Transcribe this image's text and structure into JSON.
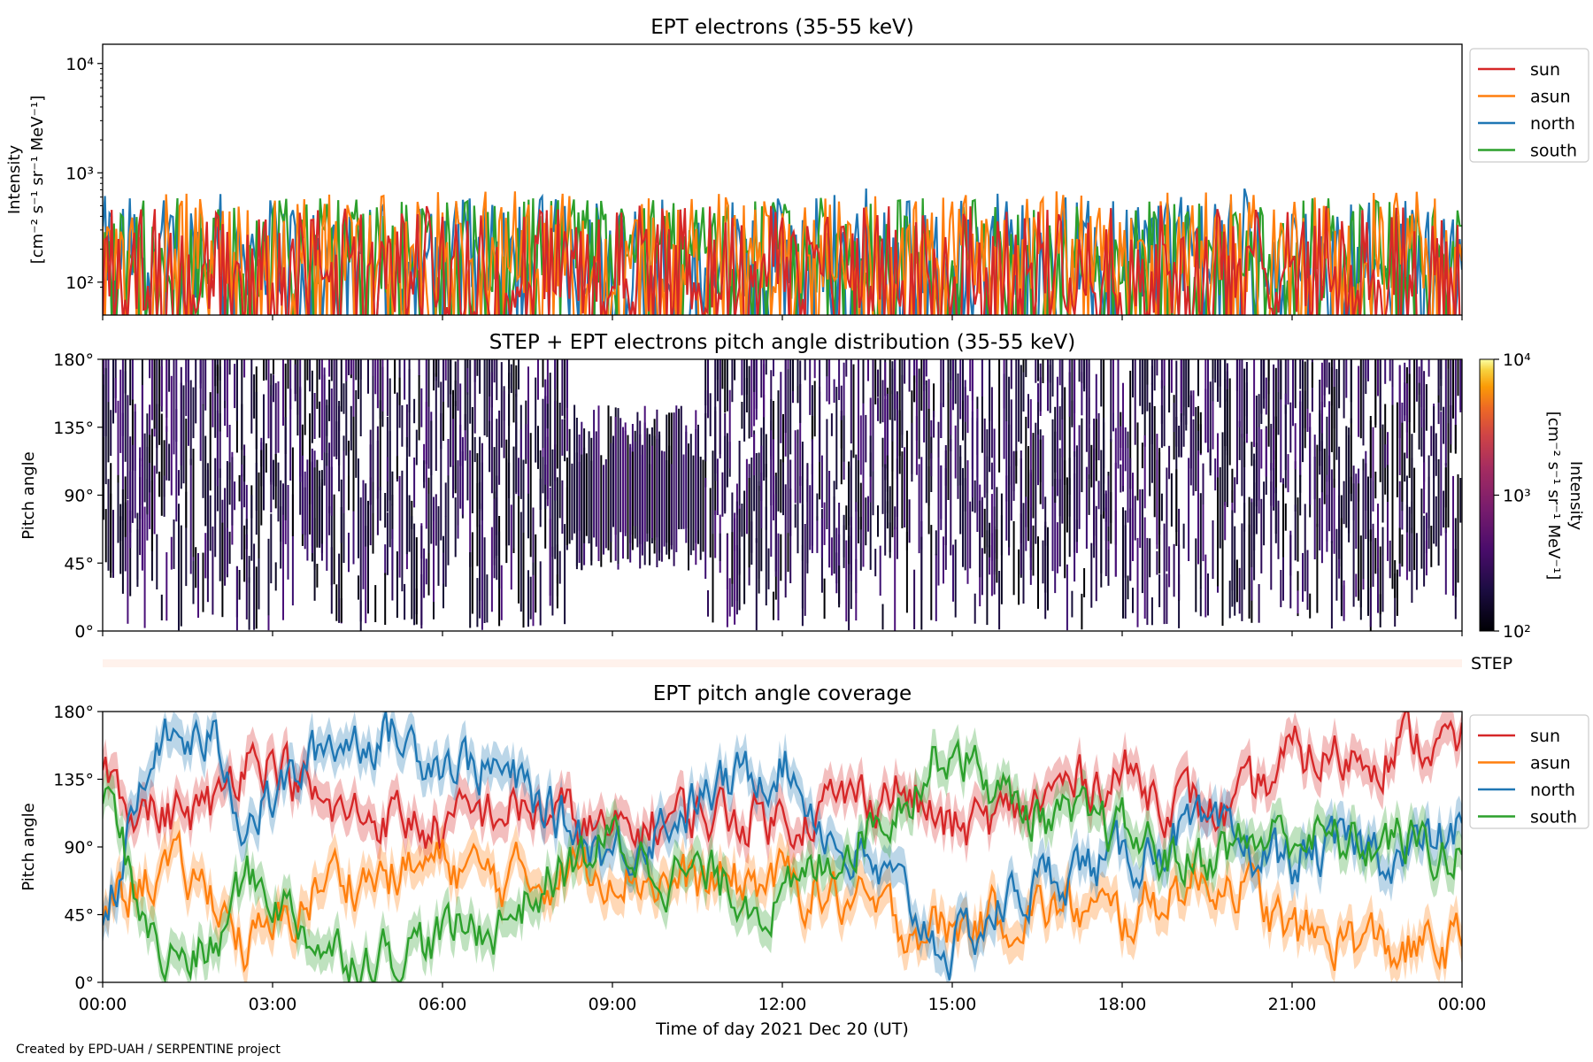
{
  "footer": "Created by EPD-UAH / SERPENTINE project",
  "colors": {
    "sun": "#d62728",
    "asun": "#ff7f0e",
    "north": "#1f77b4",
    "south": "#2ca02c"
  },
  "chart_data": [
    {
      "type": "line",
      "title": "EPT electrons (35-55 keV)",
      "ylabel_line1": "Intensity",
      "ylabel_line2": "[cm⁻² s⁻¹ sr⁻¹ MeV⁻¹]",
      "yscale": "log",
      "ylim": [
        50,
        15000
      ],
      "yticks": [
        {
          "v": 100,
          "label": "10²"
        },
        {
          "v": 1000,
          "label": "10³"
        },
        {
          "v": 10000,
          "label": "10⁴"
        }
      ],
      "xlim_hours": [
        0,
        24
      ],
      "legend_position": "right",
      "series": [
        {
          "name": "sun",
          "color": "#d62728",
          "typical": 160,
          "spread": 0.32,
          "spikes": 330
        },
        {
          "name": "asun",
          "color": "#ff7f0e",
          "typical": 230,
          "spread": 0.3,
          "spikes": 600
        },
        {
          "name": "north",
          "color": "#1f77b4",
          "typical": 210,
          "spread": 0.3,
          "spikes": 700
        },
        {
          "name": "south",
          "color": "#2ca02c",
          "typical": 200,
          "spread": 0.3,
          "spikes": 520
        }
      ],
      "draw_order": [
        "north",
        "south",
        "asun",
        "sun"
      ]
    },
    {
      "type": "heatmap",
      "title": "STEP + EPT electrons pitch angle distribution (35-55 keV)",
      "ylabel": "Pitch angle",
      "ylim": [
        0,
        180
      ],
      "yticks": [
        {
          "v": 0,
          "label": "0°"
        },
        {
          "v": 45,
          "label": "45°"
        },
        {
          "v": 90,
          "label": "90°"
        },
        {
          "v": 135,
          "label": "135°"
        },
        {
          "v": 180,
          "label": "180°"
        }
      ],
      "colorbar": {
        "label_line1": "Intensity",
        "label_line2": "[cm⁻² s⁻¹ sr⁻¹ MeV⁻¹]",
        "scale": "log",
        "range": [
          100,
          10000
        ],
        "ticks": [
          {
            "v": 100,
            "label": "10²"
          },
          {
            "v": 1000,
            "label": "10³"
          },
          {
            "v": 10000,
            "label": "10⁴"
          }
        ],
        "colormap": "inferno"
      },
      "typical_value": 130
    },
    {
      "type": "bar",
      "label": "STEP",
      "color": "#fff2ec"
    },
    {
      "type": "line",
      "title": "EPT pitch angle coverage",
      "ylabel": "Pitch angle",
      "ylim": [
        0,
        180
      ],
      "yticks": [
        {
          "v": 0,
          "label": "0°"
        },
        {
          "v": 45,
          "label": "45°"
        },
        {
          "v": 90,
          "label": "90°"
        },
        {
          "v": 135,
          "label": "135°"
        },
        {
          "v": 180,
          "label": "180°"
        }
      ],
      "xlabel": "Time of day 2021 Dec 20 (UT)",
      "xlim_hours": [
        0,
        24
      ],
      "xticks": [
        {
          "v": 0,
          "label": "00:00"
        },
        {
          "v": 3,
          "label": "03:00"
        },
        {
          "v": 6,
          "label": "06:00"
        },
        {
          "v": 9,
          "label": "09:00"
        },
        {
          "v": 12,
          "label": "12:00"
        },
        {
          "v": 15,
          "label": "15:00"
        },
        {
          "v": 18,
          "label": "18:00"
        },
        {
          "v": 21,
          "label": "21:00"
        },
        {
          "v": 24,
          "label": "00:00"
        }
      ],
      "legend_position": "right",
      "band_halfwidth_deg": 12,
      "series": [
        {
          "name": "sun",
          "color": "#d62728",
          "x": [
            0,
            1,
            2,
            2.5,
            3,
            4,
            5,
            6,
            7,
            8,
            9,
            10,
            11,
            12,
            13,
            14,
            15,
            16,
            17,
            18,
            19,
            20,
            21,
            22,
            23,
            24
          ],
          "y": [
            140,
            110,
            115,
            155,
            150,
            110,
            112,
            100,
            115,
            112,
            95,
            110,
            112,
            110,
            120,
            130,
            100,
            110,
            130,
            140,
            120,
            110,
            150,
            150,
            160,
            155
          ]
        },
        {
          "name": "asun",
          "color": "#ff7f0e",
          "x": [
            0,
            1,
            2,
            2.5,
            3,
            4,
            5,
            6,
            7,
            8,
            9,
            10,
            11,
            12,
            13,
            14,
            15,
            16,
            17,
            18,
            19,
            20,
            21,
            22,
            23,
            24
          ],
          "y": [
            50,
            75,
            60,
            25,
            30,
            70,
            70,
            80,
            68,
            72,
            80,
            65,
            65,
            68,
            55,
            40,
            35,
            45,
            50,
            40,
            65,
            70,
            30,
            30,
            20,
            25
          ]
        },
        {
          "name": "north",
          "color": "#1f77b4",
          "x": [
            0,
            1,
            2,
            2.5,
            3,
            4,
            5,
            6,
            7,
            8,
            9,
            10,
            11,
            12,
            13,
            14,
            15,
            16,
            17,
            18,
            19,
            20,
            21,
            22,
            23,
            24
          ],
          "y": [
            40,
            160,
            160,
            110,
            120,
            160,
            165,
            150,
            140,
            110,
            85,
            110,
            130,
            150,
            90,
            60,
            20,
            55,
            75,
            80,
            100,
            90,
            80,
            90,
            85,
            100
          ]
        },
        {
          "name": "south",
          "color": "#2ca02c",
          "x": [
            0,
            1,
            2,
            2.5,
            3,
            4,
            5,
            6,
            7,
            8,
            9,
            10,
            11,
            12,
            13,
            14,
            15,
            16,
            17,
            18,
            19,
            20,
            21,
            22,
            23,
            24
          ],
          "y": [
            130,
            15,
            20,
            70,
            60,
            20,
            20,
            30,
            40,
            70,
            95,
            75,
            65,
            50,
            90,
            120,
            160,
            120,
            105,
            100,
            80,
            90,
            100,
            90,
            95,
            80
          ]
        }
      ]
    }
  ]
}
